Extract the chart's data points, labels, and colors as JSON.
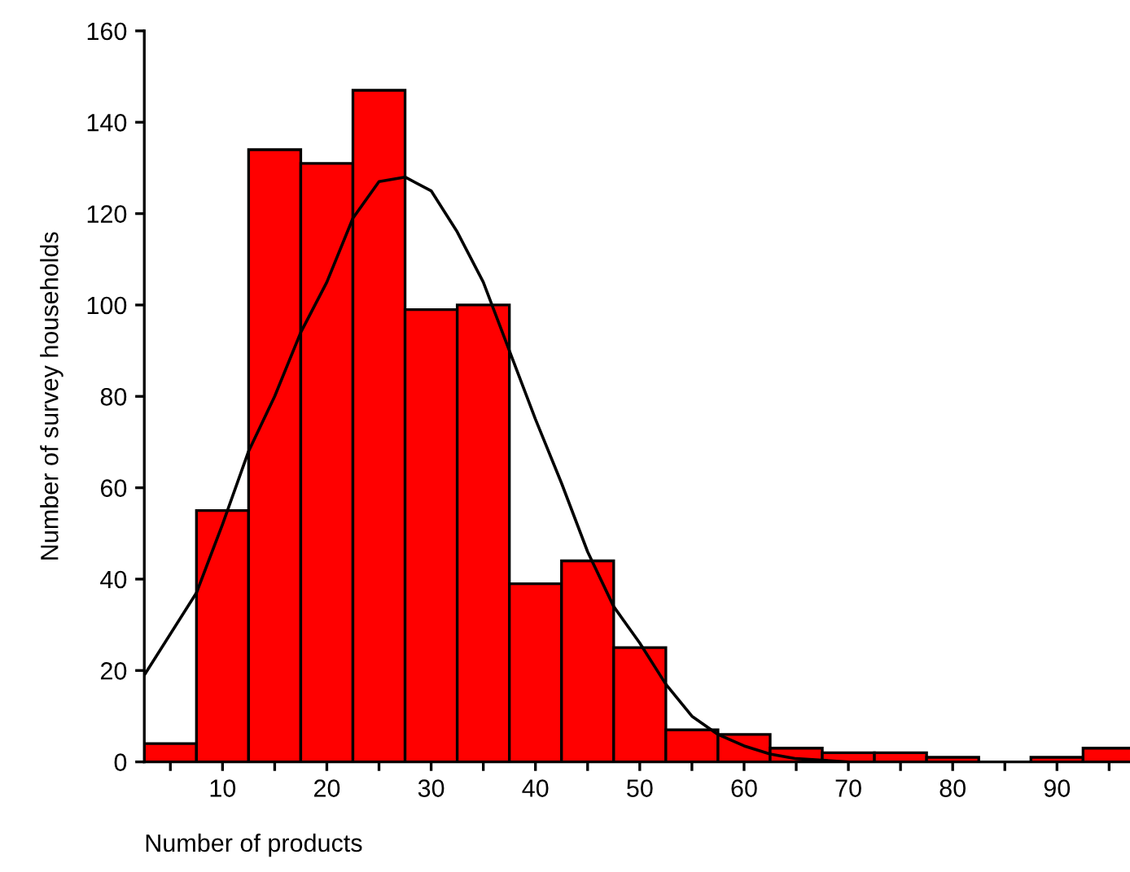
{
  "chart_data": {
    "type": "histogram",
    "xlabel": "Number of products",
    "ylabel": "Number of survey households",
    "series": [
      {
        "color": "#ff0000",
        "bins": [
          2.5,
          7.5,
          12.5,
          17.5,
          22.5,
          27.5,
          32.5,
          37.5,
          42.5,
          47.5,
          52.5,
          57.5,
          62.5,
          67.5,
          72.5,
          77.5,
          82.5,
          87.5,
          92.5,
          97.5
        ],
        "values": [
          4,
          55,
          134,
          131,
          147,
          99,
          100,
          39,
          44,
          25,
          7,
          6,
          3,
          2,
          2,
          1,
          0,
          1,
          3
        ]
      },
      {
        "type": "line",
        "color": "#000000",
        "x": [
          2.5,
          7.5,
          10,
          12.5,
          15,
          17.5,
          20,
          22.5,
          25,
          27.5,
          30,
          32.5,
          35,
          37.5,
          40,
          42.5,
          45,
          47.5,
          50,
          52.5,
          55,
          57.5,
          60,
          62.5,
          65,
          70
        ],
        "values": [
          19,
          37,
          52,
          68,
          80,
          94,
          105,
          119,
          127,
          128,
          125,
          116,
          105,
          90,
          75,
          61,
          46,
          34,
          26,
          17,
          10,
          6,
          3.5,
          1.7,
          0.7,
          0
        ]
      }
    ],
    "xlim": [
      2.5,
      97
    ],
    "ylim": [
      0,
      160
    ],
    "xticks": [
      {
        "value": 5,
        "label": null
      },
      10,
      {
        "value": 15,
        "label": null
      },
      20,
      {
        "value": 25,
        "label": null
      },
      30,
      {
        "value": 35,
        "label": null
      },
      40,
      {
        "value": 45,
        "label": null
      },
      50,
      {
        "value": 55,
        "label": null
      },
      60,
      {
        "value": 65,
        "label": null
      },
      70,
      {
        "value": 75,
        "label": null
      },
      80,
      {
        "value": 85,
        "label": null
      },
      90,
      {
        "value": 95,
        "label": null
      }
    ],
    "yticks": [
      0,
      20,
      40,
      60,
      80,
      100,
      120,
      140,
      160
    ],
    "grid": false,
    "legend": false
  }
}
